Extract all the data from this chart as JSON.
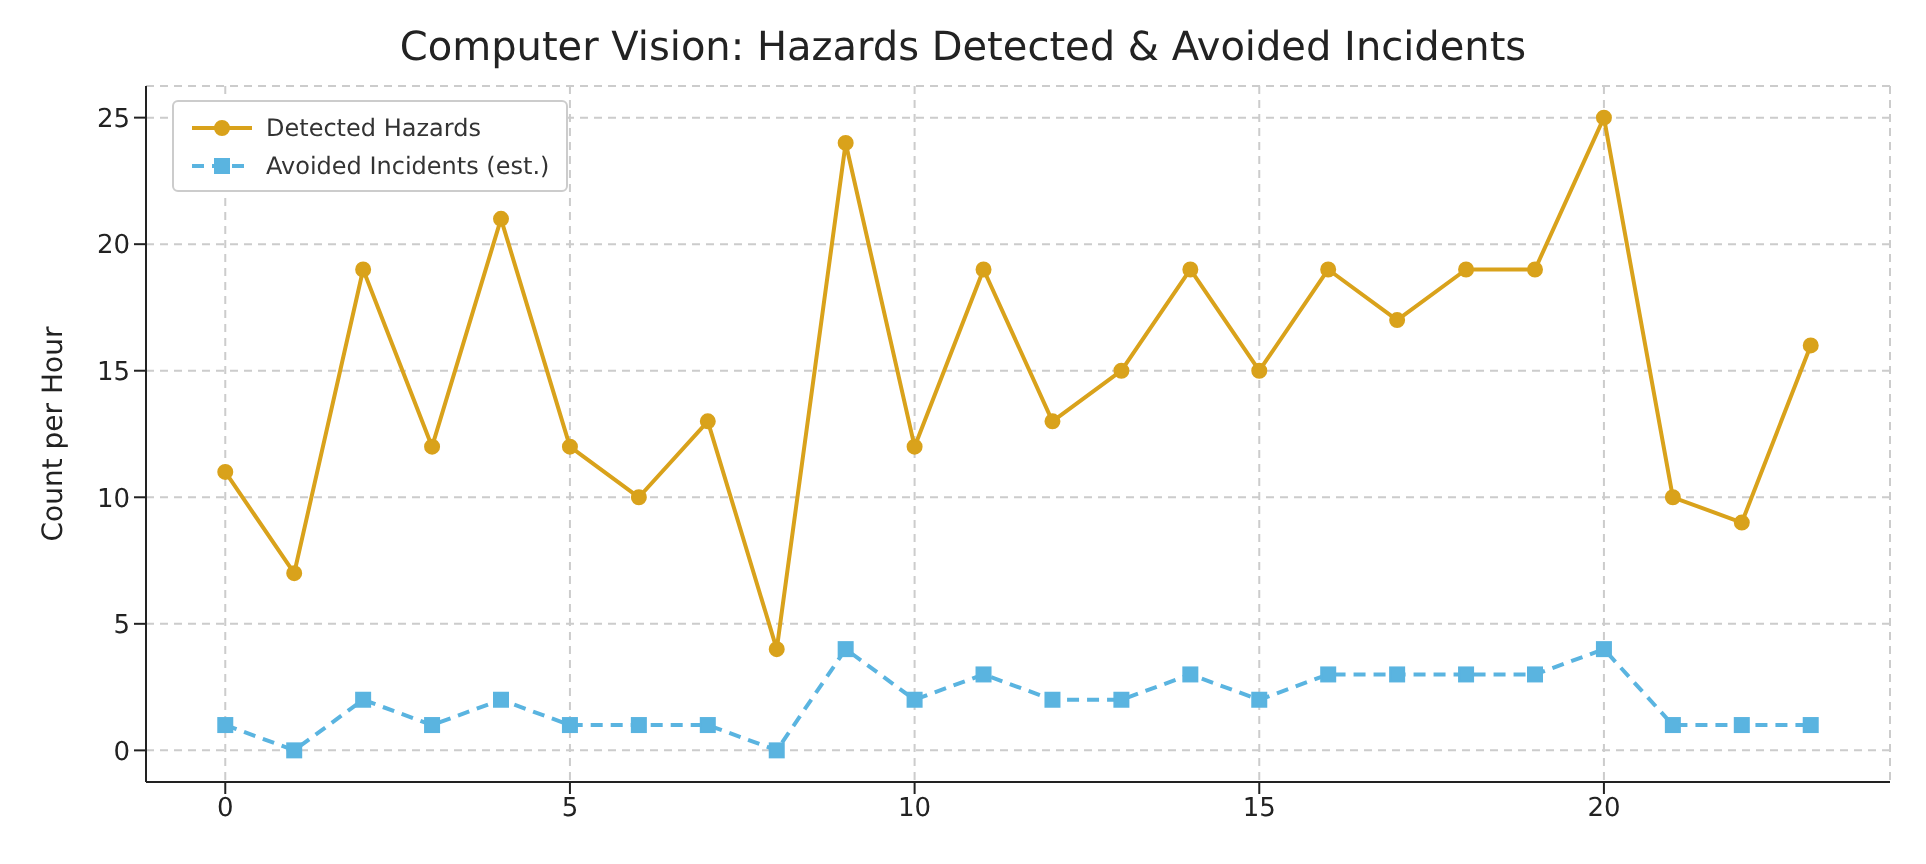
{
  "chart_data": {
    "type": "line",
    "title": "Computer Vision: Hazards Detected & Avoided Incidents",
    "ylabel": "Count per Hour",
    "x": [
      0,
      1,
      2,
      3,
      4,
      5,
      6,
      7,
      8,
      9,
      10,
      11,
      12,
      13,
      14,
      15,
      16,
      17,
      18,
      19,
      20,
      21,
      22,
      23
    ],
    "series": [
      {
        "name": "Detected Hazards",
        "color": "#d9a21b",
        "marker": "circle",
        "line_style": "solid",
        "values": [
          11,
          7,
          19,
          12,
          21,
          12,
          10,
          13,
          4,
          24,
          12,
          19,
          13,
          15,
          19,
          15,
          19,
          17,
          19,
          19,
          25,
          10,
          9,
          16
        ]
      },
      {
        "name": "Avoided Incidents (est.)",
        "color": "#5ab4e0",
        "marker": "square",
        "line_style": "dashed",
        "values": [
          1,
          0,
          2,
          1,
          2,
          1,
          1,
          1,
          0,
          4,
          2,
          3,
          2,
          2,
          3,
          2,
          3,
          3,
          3,
          3,
          4,
          1,
          1,
          1
        ]
      }
    ],
    "xlim": [
      -1.15,
      24.15
    ],
    "xticks": [
      0,
      5,
      10,
      15,
      20
    ],
    "ylim": [
      -1.25,
      26.25
    ],
    "yticks": [
      0,
      5,
      10,
      15,
      20,
      25
    ],
    "grid": true,
    "legend": "top left"
  }
}
